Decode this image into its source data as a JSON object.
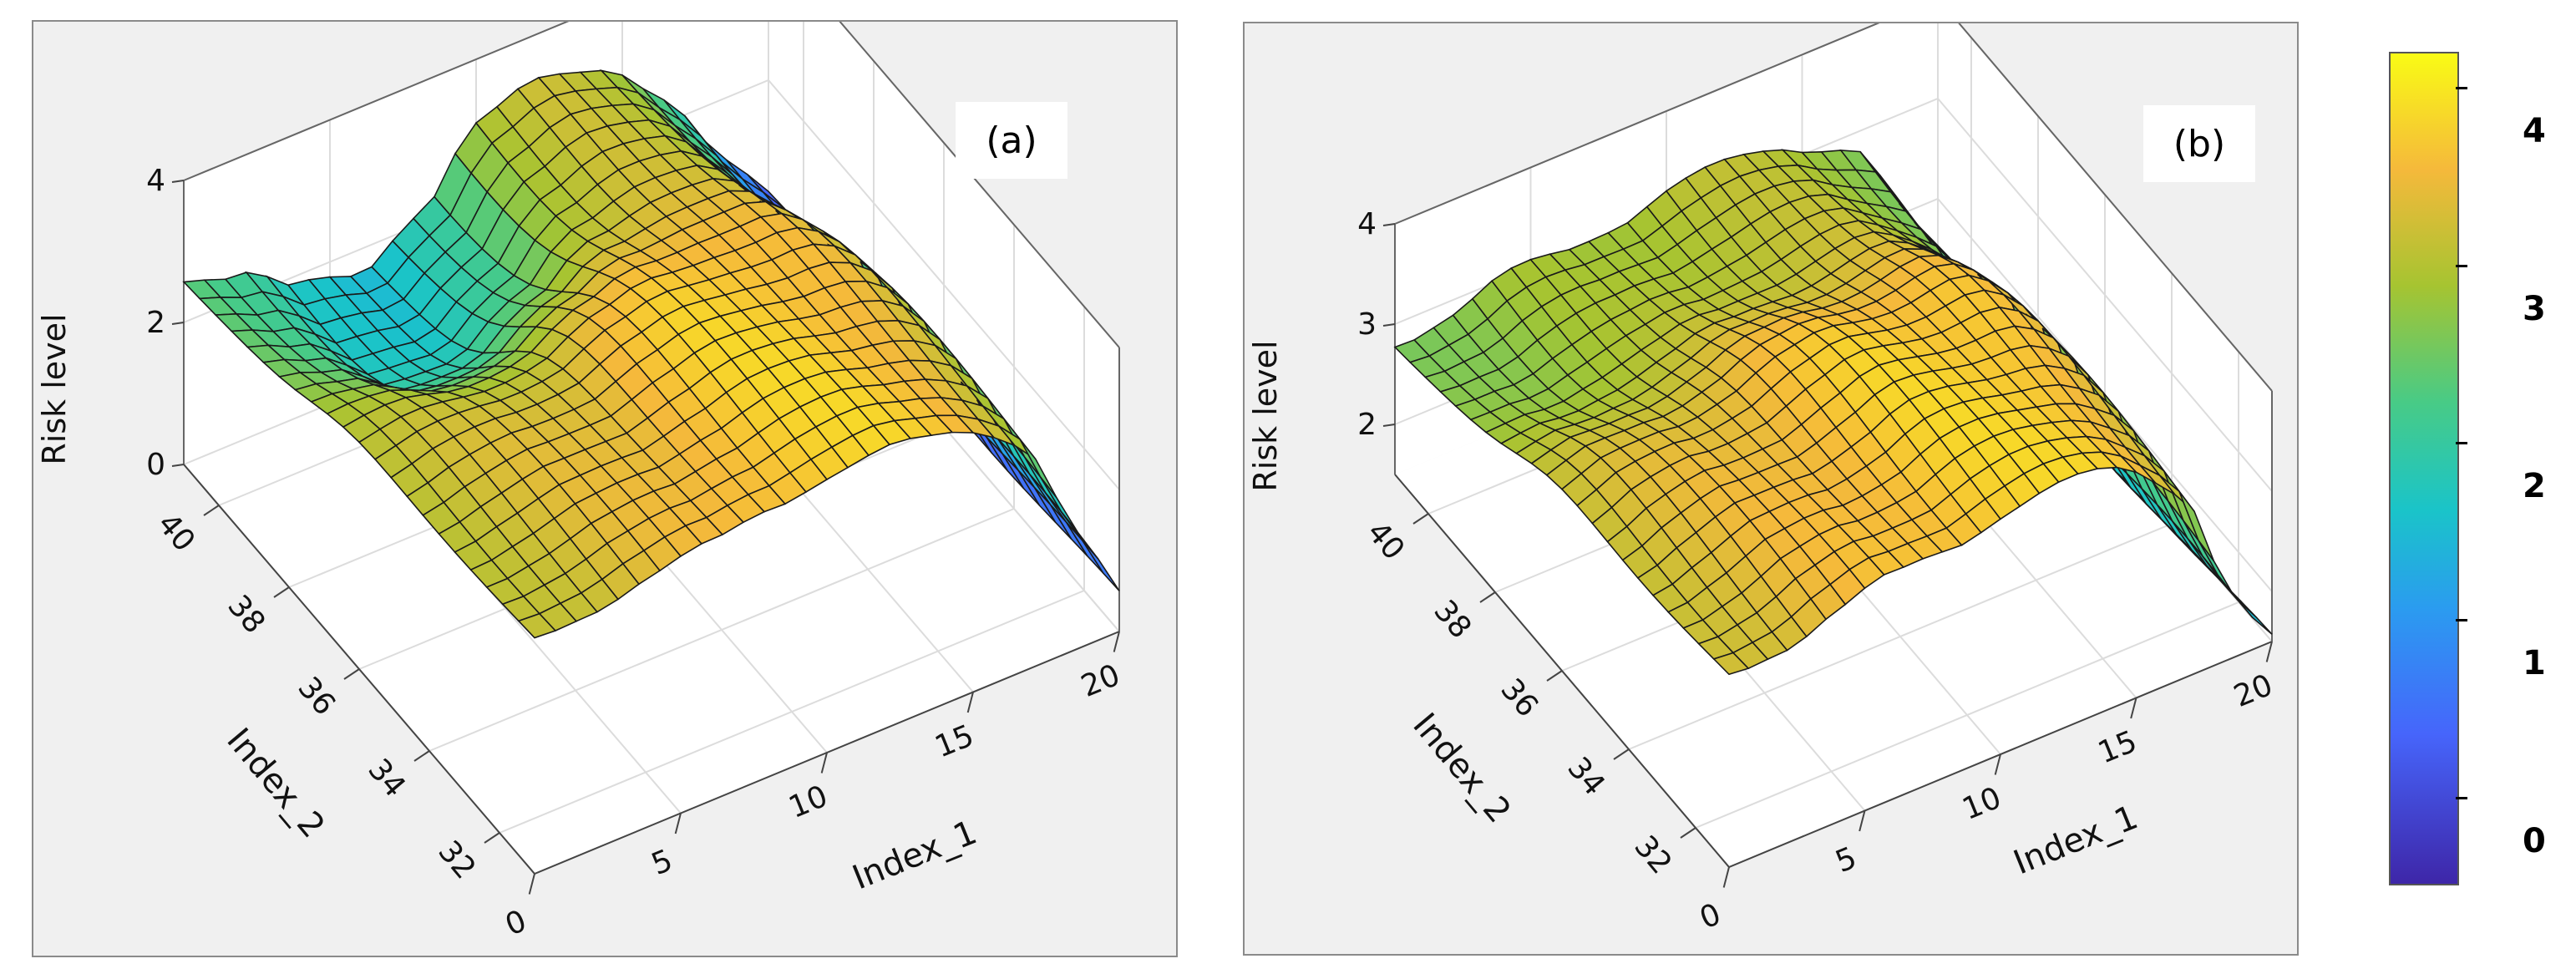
{
  "chart_data": [
    {
      "type": "surface",
      "panel_label": "(a)",
      "zlabel": "Risk level",
      "xlabel": "Index_1",
      "ylabel": "Index_2",
      "xticks": [
        "0",
        "5",
        "10",
        "15",
        "20"
      ],
      "yticks": [
        "32",
        "34",
        "36",
        "38",
        "40"
      ],
      "zticks": [
        "0",
        "2",
        "4"
      ],
      "xlim": [
        0,
        20
      ],
      "ylim": [
        31,
        41
      ],
      "zlim": [
        0,
        4
      ],
      "surface_profile": {
        "index_1": [
          0,
          2,
          4,
          6,
          8,
          10,
          12,
          14,
          15,
          16,
          17,
          18,
          19,
          20
        ],
        "risk_level_far": [
          2.6,
          2.4,
          1.8,
          1.6,
          2.2,
          3.1,
          3.3,
          3.2,
          3.0,
          2.6,
          2.0,
          1.4,
          0.8,
          0.4
        ],
        "risk_level_near": [
          3.3,
          3.4,
          3.5,
          3.6,
          3.8,
          3.9,
          3.9,
          3.8,
          3.7,
          3.5,
          3.0,
          2.2,
          1.2,
          0.5
        ]
      }
    },
    {
      "type": "surface",
      "panel_label": "(b)",
      "zlabel": "Risk level",
      "xlabel": "Index_1",
      "ylabel": "Index_2",
      "xticks": [
        "0",
        "5",
        "10",
        "15",
        "20"
      ],
      "yticks": [
        "32",
        "34",
        "36",
        "38",
        "40"
      ],
      "zticks": [
        "2",
        "3",
        "4"
      ],
      "xlim": [
        0,
        20
      ],
      "ylim": [
        31,
        41
      ],
      "zlim": [
        1.5,
        4
      ],
      "surface_profile": {
        "index_1": [
          0,
          2,
          4,
          6,
          8,
          10,
          12,
          14,
          15,
          16,
          17,
          18,
          19,
          20
        ],
        "risk_level_far": [
          2.8,
          2.9,
          3.0,
          3.0,
          3.1,
          3.2,
          3.2,
          3.2,
          3.1,
          3.0,
          2.8,
          2.4,
          1.8,
          1.5
        ],
        "risk_level_near": [
          3.4,
          3.5,
          3.6,
          3.7,
          3.8,
          3.9,
          3.9,
          3.9,
          3.8,
          3.6,
          3.2,
          2.5,
          1.8,
          1.5
        ]
      }
    }
  ],
  "colorbar": {
    "ticks": [
      "0",
      "1",
      "2",
      "3",
      "4"
    ],
    "colors": [
      "#3e26a8",
      "#4665fb",
      "#2b9bf0",
      "#1ac4c9",
      "#48cb86",
      "#a6c431",
      "#f5b93b",
      "#f9fb15"
    ]
  }
}
